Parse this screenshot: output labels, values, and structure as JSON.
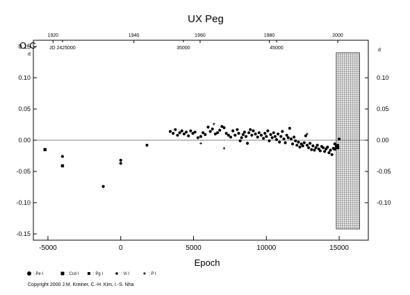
{
  "chart_data": {
    "type": "scatter",
    "title": "UX Peg",
    "ylabel_left": "O-C",
    "ylabel_left_unit": "d",
    "ylabel_right_unit": "d",
    "xlabel": "Epoch",
    "xlim": [
      -6000,
      17000
    ],
    "ylim": [
      -0.16,
      0.16
    ],
    "left_ticks": [
      {
        "v": 0.15,
        "label": "0.15"
      },
      {
        "v": 0.1,
        "label": "0.10"
      },
      {
        "v": 0.05,
        "label": "0.05"
      },
      {
        "v": 0.0,
        "label": "0.00"
      },
      {
        "v": -0.05,
        "label": "-0.05"
      },
      {
        "v": -0.1,
        "label": "-0.10"
      },
      {
        "v": -0.15,
        "label": "-0.15"
      }
    ],
    "right_ticks": [
      {
        "v": 0.1,
        "label": "0.10"
      },
      {
        "v": 0.05,
        "label": "0.05"
      },
      {
        "v": 0.0,
        "label": "0.00"
      },
      {
        "v": -0.05,
        "label": "-0.05"
      },
      {
        "v": -0.1,
        "label": "-0.10"
      }
    ],
    "x_ticks": [
      {
        "v": -5000,
        "label": "-5000"
      },
      {
        "v": 0,
        "label": "0"
      },
      {
        "v": 5000,
        "label": "5000"
      },
      {
        "v": 10000,
        "label": "10000"
      },
      {
        "v": 15000,
        "label": "15000"
      }
    ],
    "year_ticks": [
      {
        "v": -4650,
        "label": "1920"
      },
      {
        "v": 900,
        "label": "1940"
      },
      {
        "v": 5450,
        "label": "1960"
      },
      {
        "v": 10200,
        "label": "1980"
      },
      {
        "v": 14900,
        "label": "2000"
      }
    ],
    "jd_labels": [
      {
        "v": -4000,
        "label": "JD 2425000"
      },
      {
        "v": 4300,
        "label": "35000"
      },
      {
        "v": 10700,
        "label": "45000"
      }
    ],
    "shaded_region": [
      14800,
      16400
    ],
    "legend": [
      {
        "symbol": "big-dot",
        "label": ": Pe I"
      },
      {
        "symbol": "square",
        "label": ": Ccd I"
      },
      {
        "symbol": "small-square",
        "label": ": Pg I"
      },
      {
        "symbol": "dot",
        "label": ": Vi I"
      },
      {
        "symbol": "plus",
        "label": ": P I"
      }
    ],
    "series": [
      {
        "symbol": "square",
        "points": [
          [
            -5200,
            -0.015
          ],
          [
            -4000,
            -0.041
          ],
          [
            14700,
            -0.014
          ],
          [
            14900,
            -0.012
          ]
        ]
      },
      {
        "symbol": "dot",
        "points": [
          [
            -4000,
            -0.026
          ],
          [
            -1200,
            -0.074
          ],
          [
            0,
            -0.032
          ],
          [
            0,
            -0.037
          ],
          [
            1800,
            -0.008
          ],
          [
            3400,
            0.014
          ],
          [
            3600,
            0.011
          ],
          [
            3750,
            0.017
          ],
          [
            3900,
            0.008
          ],
          [
            4050,
            0.012
          ],
          [
            4200,
            0.015
          ],
          [
            4350,
            0.01
          ],
          [
            4500,
            0.013
          ],
          [
            4650,
            0.007
          ],
          [
            4800,
            0.015
          ],
          [
            4950,
            0.011
          ],
          [
            5100,
            0.013
          ],
          [
            5300,
            0.004
          ],
          [
            5500,
            0.006
          ],
          [
            5650,
            0.012
          ],
          [
            5800,
            0.009
          ],
          [
            6000,
            0.021
          ],
          [
            6150,
            0.014
          ],
          [
            6300,
            0.018
          ],
          [
            6500,
            0.01
          ],
          [
            6650,
            0.012
          ],
          [
            6800,
            0.016
          ],
          [
            6950,
            0.022
          ],
          [
            7100,
            0.02
          ],
          [
            7250,
            0.011
          ],
          [
            7400,
            0.008
          ],
          [
            7550,
            0.005
          ],
          [
            7700,
            0.015
          ],
          [
            7850,
            0.008
          ],
          [
            8000,
            0.017
          ],
          [
            8100,
            0.011
          ],
          [
            8200,
            -0.001
          ],
          [
            8300,
            0.004
          ],
          [
            8400,
            0.009
          ],
          [
            8500,
            0.013
          ],
          [
            8600,
            0.006
          ],
          [
            8700,
            -0.005
          ],
          [
            8800,
            0.012
          ],
          [
            8900,
            0.017
          ],
          [
            9000,
            0.008
          ],
          [
            9100,
            0.015
          ],
          [
            9250,
            0.01
          ],
          [
            9400,
            0.005
          ],
          [
            9500,
            0.012
          ],
          [
            9650,
            0.008
          ],
          [
            9800,
            0.003
          ],
          [
            9900,
            0.011
          ],
          [
            10000,
            0.006
          ],
          [
            10100,
            0.015
          ],
          [
            10200,
            -0.001
          ],
          [
            10300,
            0.009
          ],
          [
            10400,
            0.004
          ],
          [
            10500,
            0.012
          ],
          [
            10600,
            0.006
          ],
          [
            10700,
            0.001
          ],
          [
            10800,
            0.01
          ],
          [
            10900,
            -0.003
          ],
          [
            11000,
            0.006
          ],
          [
            11100,
            0.014
          ],
          [
            11200,
            0.002
          ],
          [
            11300,
            -0.004
          ],
          [
            11400,
            0.008
          ],
          [
            11500,
            0.004
          ],
          [
            11600,
            0.019
          ],
          [
            11700,
            0.002
          ],
          [
            11800,
            -0.006
          ],
          [
            11900,
            0.005
          ],
          [
            12000,
            -0.001
          ],
          [
            12100,
            -0.008
          ],
          [
            12200,
            -0.003
          ],
          [
            12300,
            -0.011
          ],
          [
            12400,
            -0.006
          ],
          [
            12500,
            -0.009
          ],
          [
            12600,
            -0.004
          ],
          [
            12700,
            0.007
          ],
          [
            12800,
            -0.008
          ],
          [
            12900,
            -0.012
          ],
          [
            13000,
            -0.005
          ],
          [
            13100,
            -0.015
          ],
          [
            13200,
            -0.009
          ],
          [
            13300,
            -0.016
          ],
          [
            13400,
            -0.012
          ],
          [
            13500,
            -0.008
          ],
          [
            13600,
            -0.014
          ],
          [
            13700,
            -0.017
          ],
          [
            13800,
            -0.01
          ],
          [
            13900,
            -0.012
          ],
          [
            14000,
            -0.018
          ],
          [
            14100,
            -0.014
          ],
          [
            14200,
            -0.011
          ],
          [
            14300,
            -0.02
          ],
          [
            14400,
            -0.016
          ],
          [
            14500,
            -0.023
          ],
          [
            14600,
            -0.013
          ],
          [
            14700,
            -0.006
          ],
          [
            14800,
            -0.01
          ],
          [
            14900,
            -0.008
          ],
          [
            15000,
            0.002
          ]
        ]
      },
      {
        "symbol": "plus",
        "points": [
          [
            5500,
            -0.005
          ],
          [
            6400,
            0.026
          ],
          [
            7100,
            -0.013
          ],
          [
            12800,
            0.01
          ]
        ]
      }
    ],
    "copyright": "Copyright 2000 J.M. Kreiner, C.-H. Kim, I.-S. Nha"
  }
}
